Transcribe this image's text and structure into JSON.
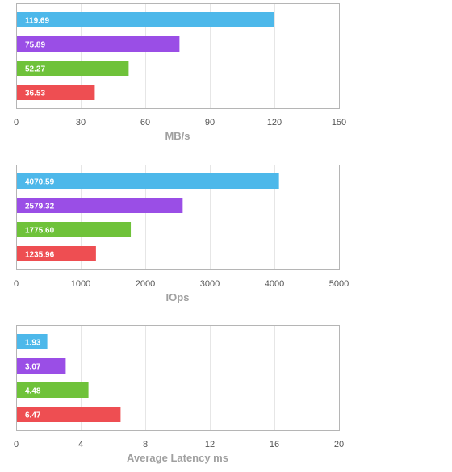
{
  "colors": [
    "#4db8ea",
    "#9a4ee6",
    "#6fc23a",
    "#ee4e52"
  ],
  "chart_data": [
    {
      "type": "bar",
      "orientation": "horizontal",
      "values": [
        119.69,
        75.89,
        52.27,
        36.53
      ],
      "value_labels": [
        "119.69",
        "75.89",
        "52.27",
        "36.53"
      ],
      "xlabel": "MB/s",
      "xlim": [
        0,
        150
      ],
      "ticks": [
        0,
        30,
        60,
        90,
        120,
        150
      ],
      "tick_labels": [
        "0",
        "30",
        "60",
        "90",
        "120",
        "150"
      ],
      "grid": true
    },
    {
      "type": "bar",
      "orientation": "horizontal",
      "values": [
        4070.59,
        2579.32,
        1775.6,
        1235.96
      ],
      "value_labels": [
        "4070.59",
        "2579.32",
        "1775.60",
        "1235.96"
      ],
      "xlabel": "IOps",
      "xlim": [
        0,
        5000
      ],
      "ticks": [
        0,
        1000,
        2000,
        3000,
        4000,
        5000
      ],
      "tick_labels": [
        "0",
        "1000",
        "2000",
        "3000",
        "4000",
        "5000"
      ],
      "grid": true
    },
    {
      "type": "bar",
      "orientation": "horizontal",
      "values": [
        1.93,
        3.07,
        4.48,
        6.47
      ],
      "value_labels": [
        "1.93",
        "3.07",
        "4.48",
        "6.47"
      ],
      "xlabel": "Average Latency ms",
      "xlim": [
        0,
        20
      ],
      "ticks": [
        0,
        4,
        8,
        12,
        16,
        20
      ],
      "tick_labels": [
        "0",
        "4",
        "8",
        "12",
        "16",
        "20"
      ],
      "grid": true
    }
  ]
}
